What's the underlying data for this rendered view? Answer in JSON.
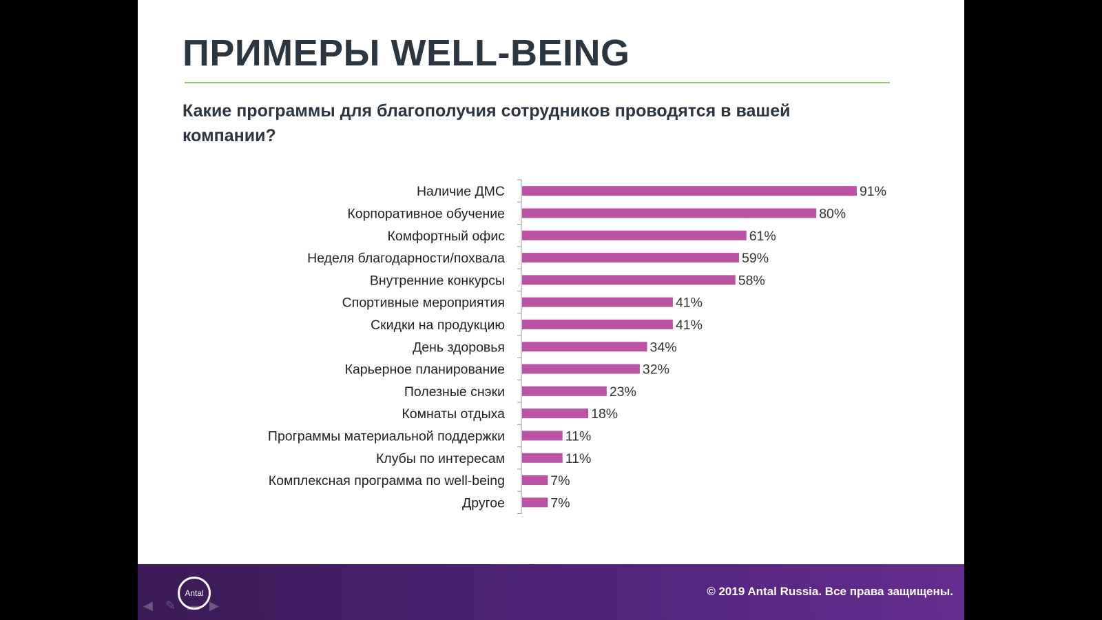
{
  "slide": {
    "title": "ПРИМЕРЫ WELL-BEING",
    "question": "Какие программы для благополучия сотрудников проводятся в вашей компании?"
  },
  "footer": {
    "logo_text": "Antal",
    "copyright": "© 2019 Antal Russia. Все права защищены."
  },
  "colors": {
    "bar": "#bb53a5",
    "rule": "#9bc56d",
    "footer": "#4e2375"
  },
  "chart_data": {
    "type": "bar",
    "orientation": "horizontal",
    "categories": [
      "Наличие ДМС",
      "Корпоративное обучение",
      "Комфортный офис",
      "Неделя благодарности/похвала",
      "Внутренние конкурсы",
      "Спортивные мероприятия",
      "Скидки на продукцию",
      "День здоровья",
      "Карьерное планирование",
      "Полезные снэки",
      "Комнаты отдыха",
      "Программы материальной поддержки",
      "Клубы по интересам",
      "Комплексная программа по well-being",
      "Другое"
    ],
    "values": [
      91,
      80,
      61,
      59,
      58,
      41,
      41,
      34,
      32,
      23,
      18,
      11,
      11,
      7,
      7
    ],
    "data_labels": [
      "91%",
      "80%",
      "61%",
      "59%",
      "58%",
      "41%",
      "41%",
      "34%",
      "32%",
      "23%",
      "18%",
      "11%",
      "11%",
      "7%",
      "7%"
    ],
    "unit": "%",
    "grid": false,
    "legend": "none"
  }
}
